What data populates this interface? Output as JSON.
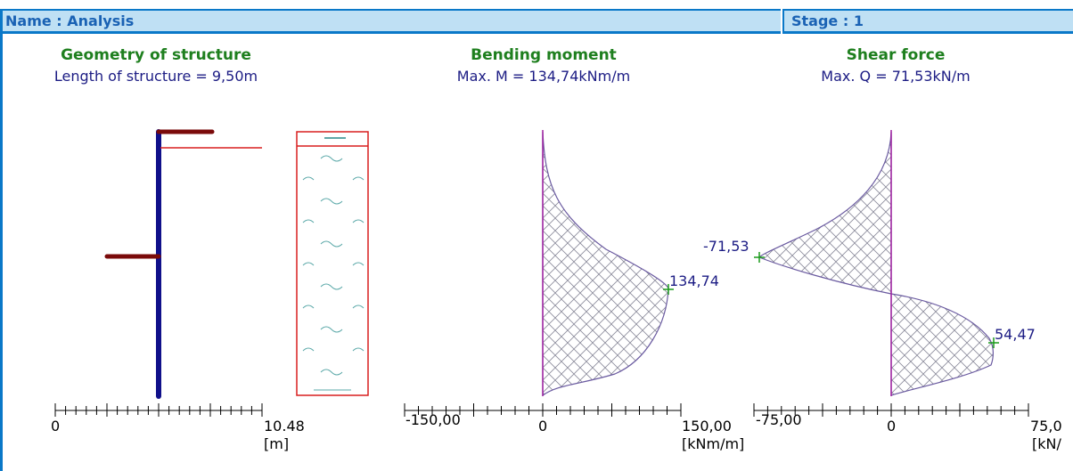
{
  "header": {
    "name_label": "Name : Analysis",
    "stage_label": "Stage : 1",
    "color": "#bfe0f4",
    "border_color": "#0a78c8"
  },
  "panels": {
    "geometry": {
      "title": "Geometry of structure",
      "subtitle": "Length of structure = 9,50m",
      "axis_min_label": "0",
      "axis_max_label": "10.48",
      "unit": "[m]"
    },
    "bending": {
      "title": "Bending moment",
      "subtitle": "Max. M = 134,74kNm/m",
      "axis_min_label": "-150,00",
      "axis_zero_label": "0",
      "axis_max_label": "150,00",
      "unit": "[kNm/m]",
      "max_label": "134,74"
    },
    "shear": {
      "title": "Shear force",
      "subtitle": "Max. Q = 71,53kN/m",
      "axis_min_label": "-75,00",
      "axis_zero_label": "0",
      "axis_max_label": "75,0",
      "unit": "[kN/",
      "min_label": "-71,53",
      "max_label": "54,47"
    }
  },
  "colors": {
    "title": "#1e7f1e",
    "text": "#1c1c84",
    "wall": "#10108a",
    "anchor": "#7a0a0a",
    "soil_border": "#d81e1e",
    "diagram_line": "#6a5aa0",
    "baseline": "#a020a0",
    "marker": "#1a9a1a"
  }
}
